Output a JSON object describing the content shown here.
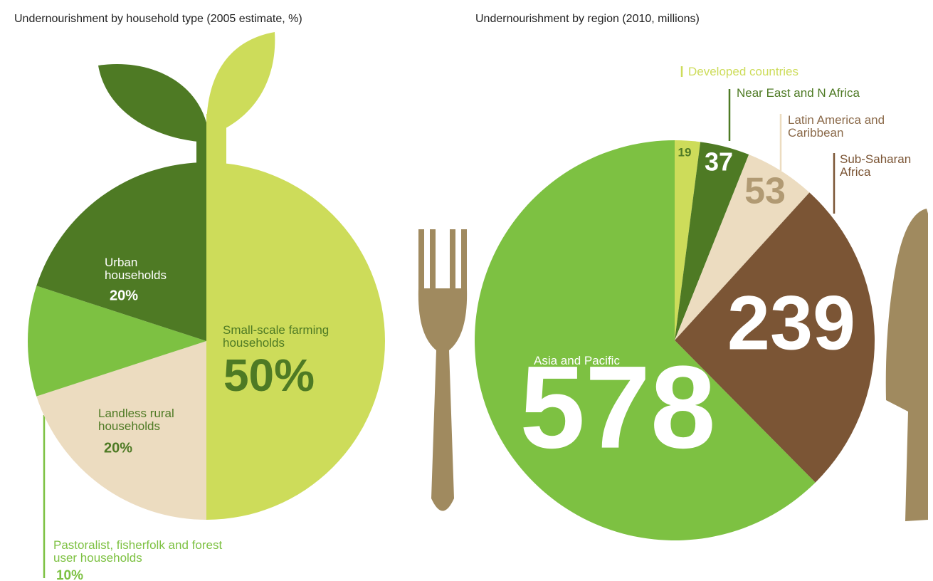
{
  "chart_data": [
    {
      "type": "pie",
      "title": "Undernourishment by household type (2005 estimate, %)",
      "categories": [
        "Small-scale farming households",
        "Landless rural households",
        "Pastoralist, fisherfolk and forest user households",
        "Urban households"
      ],
      "values": [
        50,
        20,
        10,
        20
      ],
      "value_labels": [
        "50%",
        "20%",
        "10%",
        "20%"
      ],
      "colors": [
        "#cddc5a",
        "#ecdcc0",
        "#7dc142",
        "#4e7a24"
      ]
    },
    {
      "type": "pie",
      "title": "Undernourishment by region (2010, millions)",
      "categories": [
        "Developed countries",
        "Near East and N Africa",
        "Latin America and Caribbean",
        "Sub-Saharan Africa",
        "Asia and Pacific"
      ],
      "values": [
        19,
        37,
        53,
        239,
        578
      ],
      "colors": [
        "#cddc5a",
        "#4e7a24",
        "#ecdcc0",
        "#7b5535",
        "#7dc142"
      ]
    }
  ]
}
